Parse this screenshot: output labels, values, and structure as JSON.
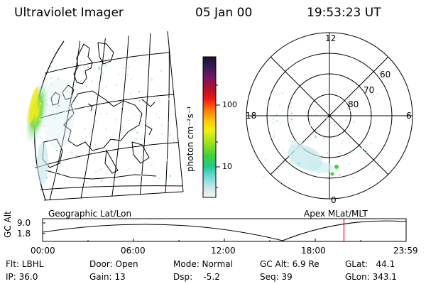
{
  "header": {
    "title": "Ultraviolet Imager",
    "date": "05 Jan 00",
    "time": "19:53:23 UT"
  },
  "colorbar": {
    "unit_label": "photon cm⁻²s⁻¹",
    "ticks": [
      "100",
      "10"
    ]
  },
  "polar": {
    "mlt_labels": [
      "12",
      "18",
      "6",
      "0"
    ],
    "lat_labels": [
      "60",
      "70",
      "80"
    ]
  },
  "panels": {
    "left_label": "Geographic Lat/Lon",
    "right_label": "Apex MLat/MLT"
  },
  "altitude_plot": {
    "y_label": "GC Alt",
    "y_ticks": [
      "9.0",
      "1.8"
    ],
    "x_ticks": [
      "00:00",
      "06:00",
      "12:00",
      "18:00",
      "23:59"
    ],
    "current_time_fraction": 0.829
  },
  "info": {
    "flt": "Flt: LBHL",
    "ip": "IP: 36.0",
    "door": "Door: Open",
    "gain": "Gain: 13",
    "mode": "Mode: Normal",
    "dsp": "Dsp:    -5.2",
    "gc_alt": "GC Alt: 6.9 Re",
    "seq": "Seq: 39",
    "glat": "GLat:   44.1",
    "glon": "GLon: 343.1"
  },
  "colors": {
    "marker": "#ff0000",
    "aurora_low": "#bfe8ea",
    "aurora_high": "#ffee00"
  }
}
